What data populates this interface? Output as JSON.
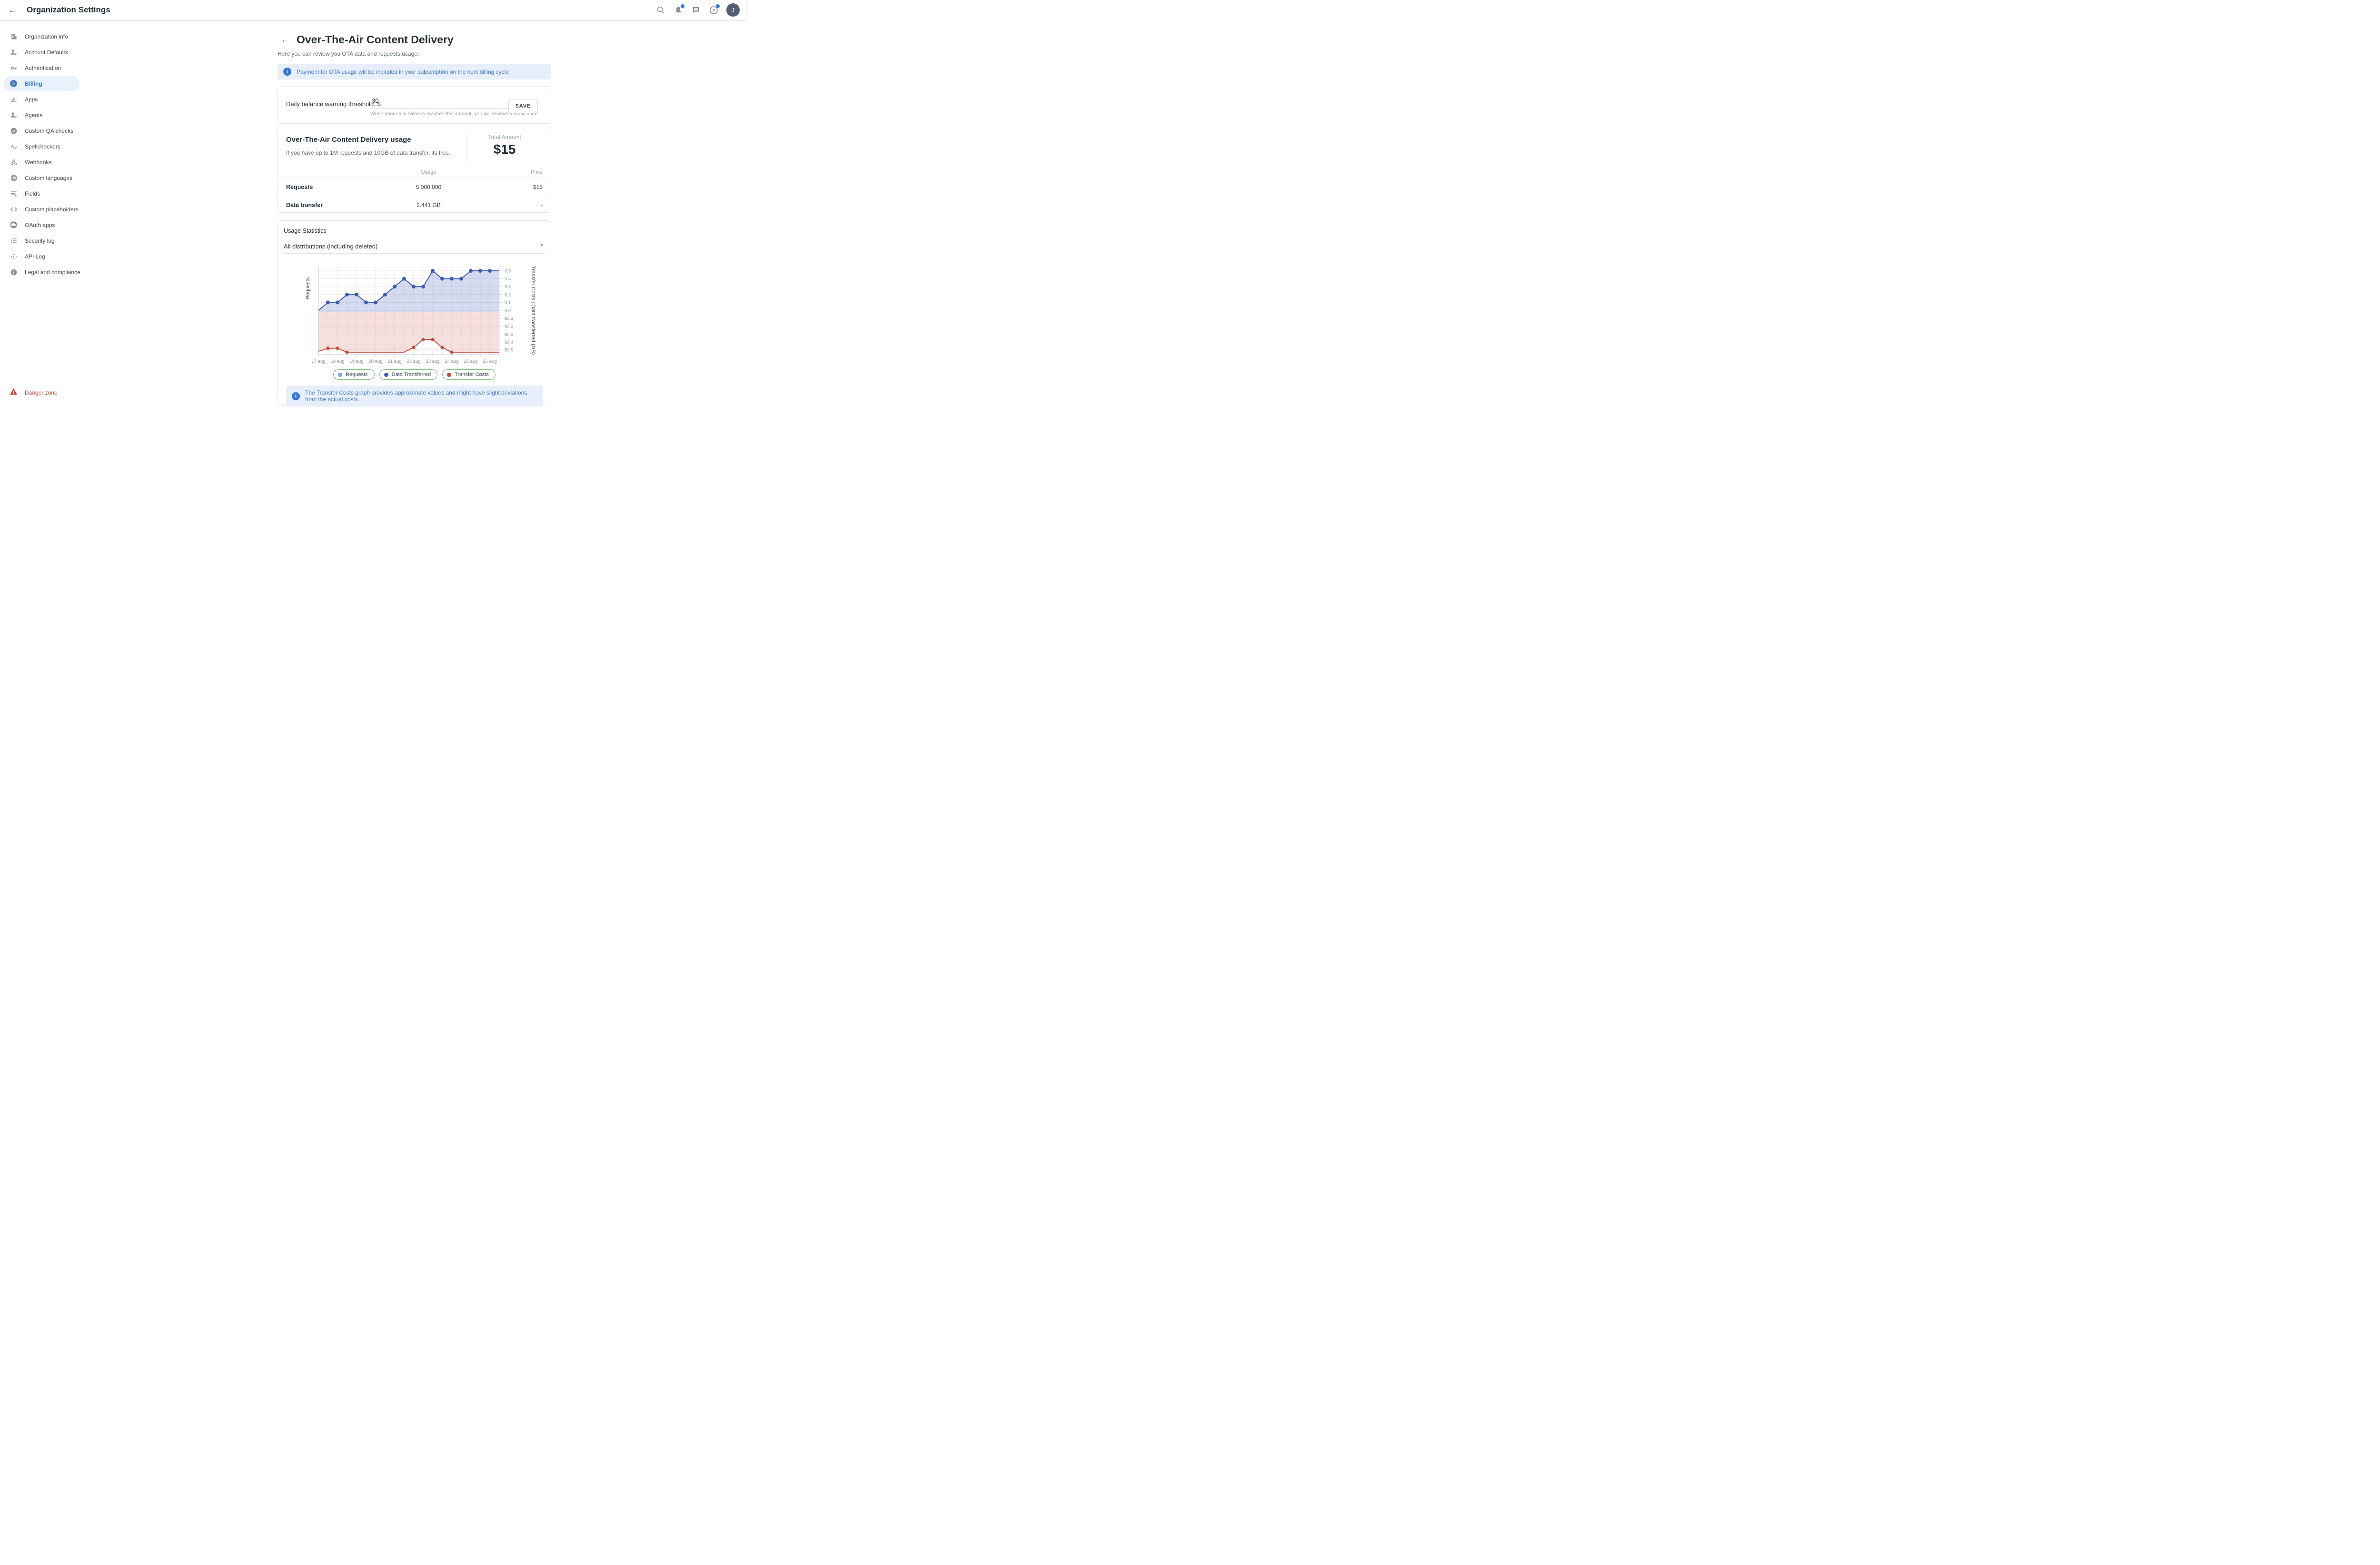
{
  "topbar": {
    "title": "Organization Settings",
    "avatar_initial": "J",
    "icons": [
      "search-icon",
      "notifications-icon",
      "chat-icon",
      "help-icon"
    ]
  },
  "sidebar": {
    "items": [
      {
        "label": "Organization info",
        "icon": "building-icon",
        "active": false
      },
      {
        "label": "Account Defaults",
        "icon": "user-gear-icon",
        "active": false
      },
      {
        "label": "Authentication",
        "icon": "key-icon",
        "active": false
      },
      {
        "label": "Billing",
        "icon": "dollar-circle-icon",
        "active": true
      },
      {
        "label": "Apps",
        "icon": "download-icon",
        "active": false
      },
      {
        "label": "Agents",
        "icon": "user-gear-icon",
        "active": false
      },
      {
        "label": "Custom QA checks",
        "icon": "check-circle-icon",
        "active": false
      },
      {
        "label": "Spellcheckers",
        "icon": "spellcheck-icon",
        "active": false
      },
      {
        "label": "Webhooks",
        "icon": "webhook-icon",
        "active": false
      },
      {
        "label": "Custom languages",
        "icon": "globe-icon",
        "active": false
      },
      {
        "label": "Fields",
        "icon": "list-add-icon",
        "active": false
      },
      {
        "label": "Custom placeholders",
        "icon": "code-icon",
        "active": false
      },
      {
        "label": "OAuth apps",
        "icon": "cloud-circle-icon",
        "active": false
      },
      {
        "label": "Security log",
        "icon": "list-icon",
        "active": false
      },
      {
        "label": "API Log",
        "icon": "api-icon",
        "active": false
      },
      {
        "label": "Legal and compliance",
        "icon": "info-circle-icon",
        "active": false
      }
    ],
    "danger_label": "Danger zone"
  },
  "page": {
    "title": "Over-The-Air Content Delivery",
    "subtitle": "Here you can review you OTA data and requests usage.",
    "banner": "Payment for OTA usage will be included in your subscription on the next billing cycle"
  },
  "threshold": {
    "label": "Daily balance warning threshold, $",
    "value": "30",
    "helper": "When your daily balance reaches this amount, you will receive a notification.",
    "save_label": "SAVE"
  },
  "usage_card": {
    "title": "Over-The-Air Content Delivery usage",
    "description": "If you have up to 1M requests and 10GB of data transfer, its free.",
    "total_label": "Total Amount",
    "total_value": "$15",
    "table": {
      "headers": [
        "Usage",
        "Price"
      ],
      "rows": [
        {
          "name": "Requests",
          "usage": "5 000 000",
          "price": "$15"
        },
        {
          "name": "Data transfer",
          "usage": "2.441 GB",
          "price": "-"
        }
      ]
    }
  },
  "stats_card": {
    "title": "Usage Statistics",
    "filter_value": "All distributions (including deleted)",
    "footer_banner": "The Transfer Costs graph provides approximate values and might have slight deviations from the actual costs."
  },
  "chart_data": {
    "type": "area",
    "title": "Usage Statistics",
    "x_labels": [
      "17 aug",
      "18 aug",
      "19 aug",
      "20 aug",
      "21 aug",
      "23 aug",
      "23 aug",
      "24 aug",
      "25 aug",
      "26 aug"
    ],
    "x_label_indices": [
      0,
      2,
      4,
      6,
      8,
      10,
      12,
      14,
      16,
      18
    ],
    "ylabel_left": "Requests",
    "ylabel_right": "Transfer Costs | Data transferred (GB)",
    "yticks_top": [
      0.5,
      0.4,
      0.3,
      0.2,
      0.1,
      0.0
    ],
    "yticks_bottom_labels": [
      "$0.1",
      "$0.2",
      "$0.3",
      "$0.4",
      "$0.5"
    ],
    "ylim_top": [
      0,
      0.55
    ],
    "ylim_bottom": [
      0,
      0.56
    ],
    "grid": true,
    "legend_position": "bottom",
    "series": [
      {
        "name": "Data Transferred (GB)",
        "axis": "top",
        "color": "#3f5bb4",
        "fill": "rgba(63,91,180,0.22)",
        "values": [
          0,
          0.1,
          0.1,
          0.2,
          0.2,
          0.1,
          0.1,
          0.2,
          0.3,
          0.4,
          0.3,
          0.3,
          0.5,
          0.4,
          0.4,
          0.4,
          0.5,
          0.5,
          0.5,
          0.5
        ],
        "marker_indices": [
          1,
          2,
          3,
          4,
          5,
          6,
          7,
          8,
          9,
          10,
          11,
          12,
          13,
          14,
          15,
          16,
          17,
          18
        ]
      },
      {
        "name": "Transfer Costs ($)",
        "axis": "bottom",
        "color": "#c64a38",
        "fill": "rgba(198,74,56,0.17)",
        "values": [
          0.52,
          0.48,
          0.48,
          0.53,
          0.53,
          0.53,
          0.53,
          0.53,
          0.53,
          0.53,
          0.47,
          0.37,
          0.37,
          0.47,
          0.53,
          0.53,
          0.53,
          0.53,
          0.53,
          0.53
        ],
        "marker_indices": [
          1,
          2,
          3,
          10,
          11,
          12,
          13,
          14
        ]
      }
    ],
    "legend": [
      {
        "label": "Requests",
        "color": "#6fa8e8"
      },
      {
        "label": "Data Transferred",
        "color": "#3f5bb4"
      },
      {
        "label": "Transfer Costs",
        "color": "#c64a38"
      }
    ]
  }
}
